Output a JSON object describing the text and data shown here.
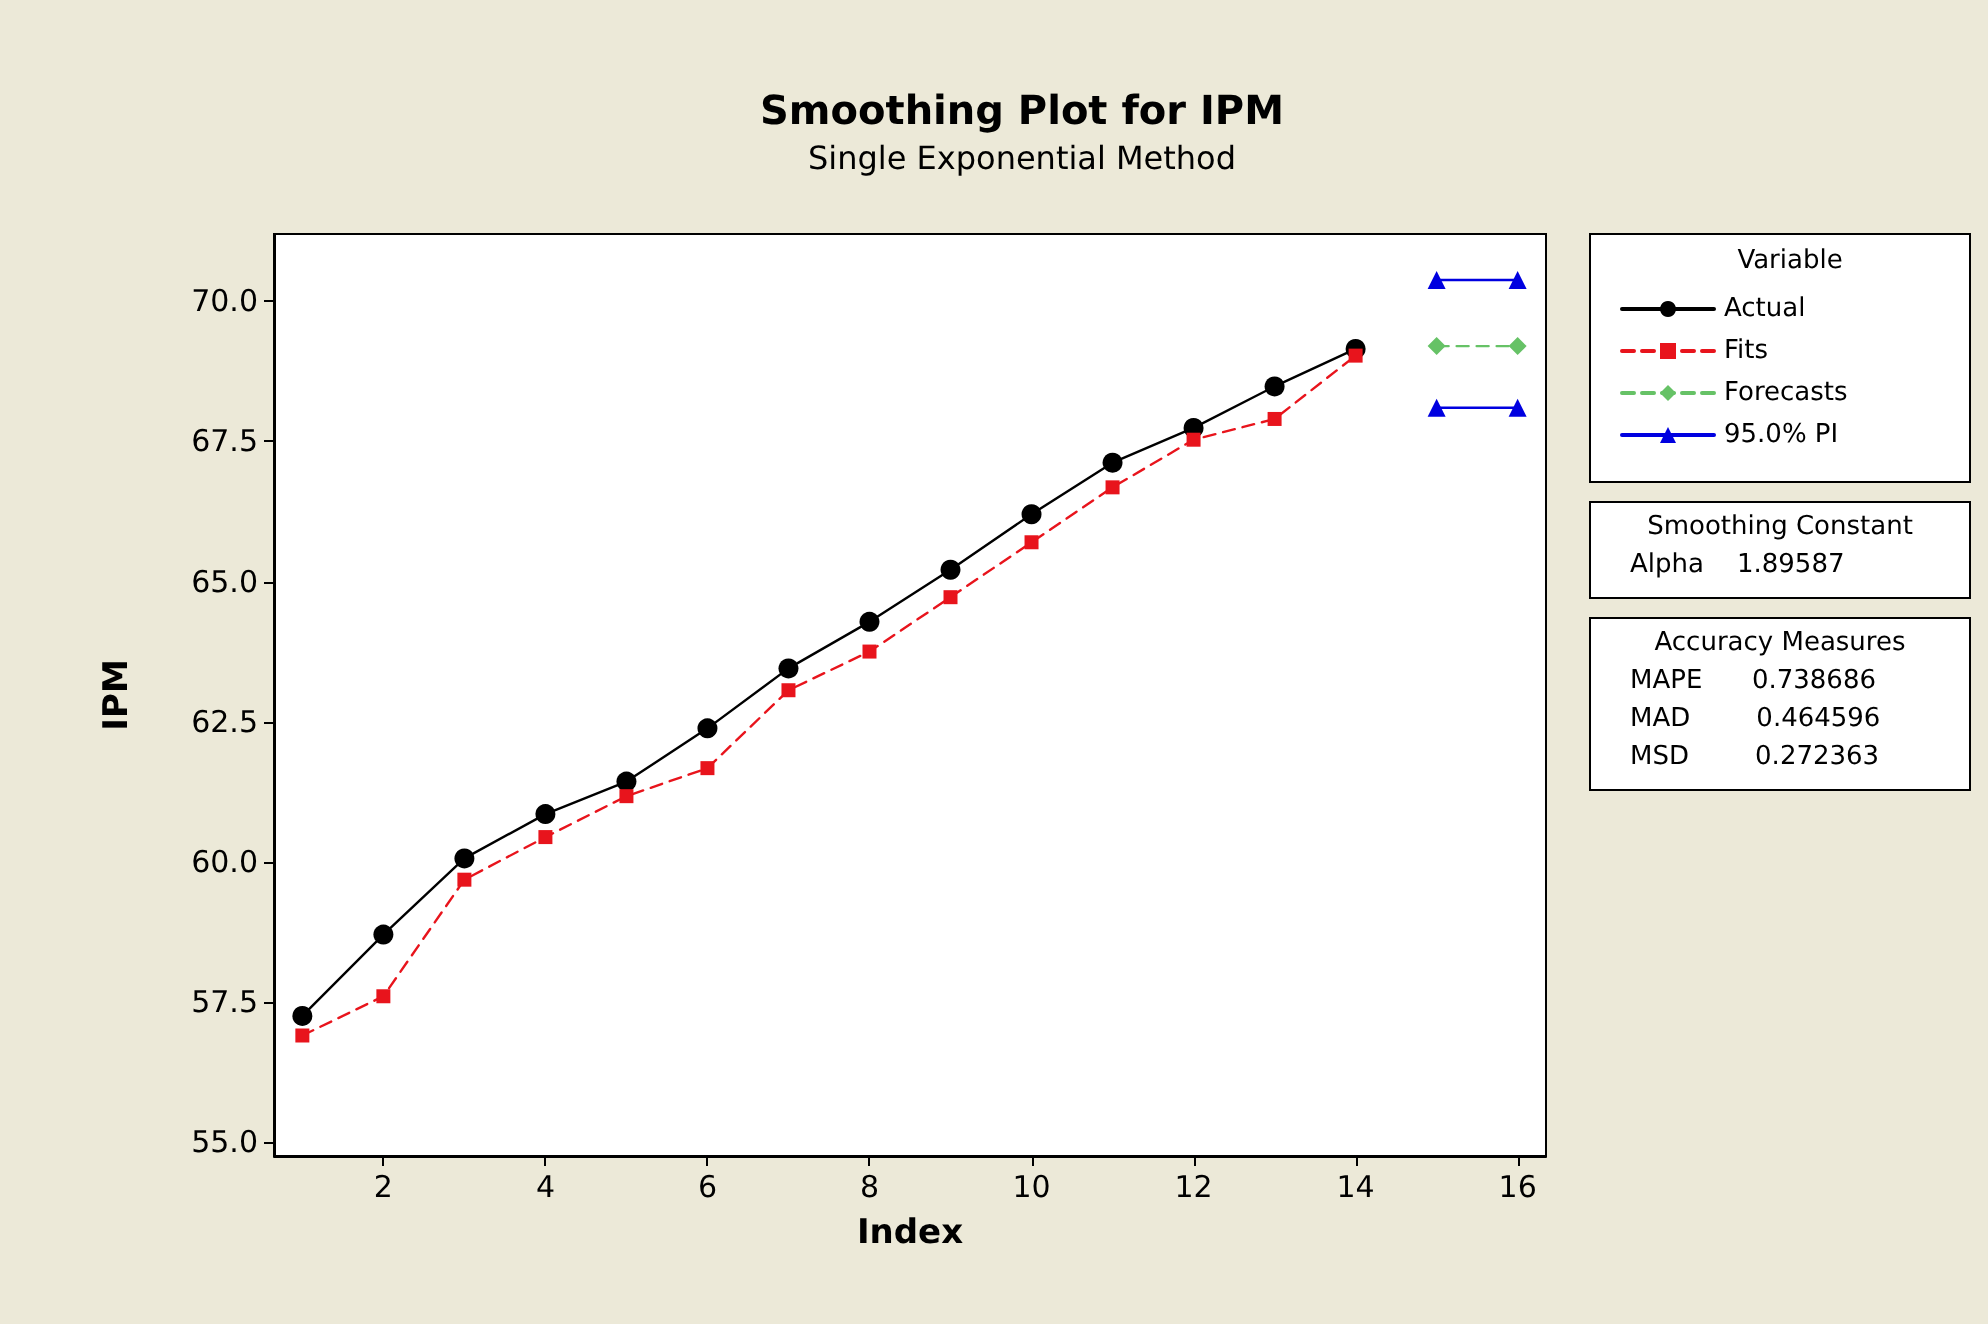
{
  "chart_data": {
    "type": "line",
    "title": "Smoothing Plot for IPM",
    "subtitle": "Single Exponential Method",
    "xlabel": "Index",
    "ylabel": "IPM",
    "legend_title": "Variable",
    "legend": "right",
    "xlim": [
      0.65,
      16.35
    ],
    "xticks": [
      2,
      4,
      6,
      8,
      10,
      12,
      14,
      16
    ],
    "ylim": [
      54.75,
      71.2
    ],
    "yticks": [
      {
        "value": 55,
        "label": "55.0"
      },
      57.5,
      {
        "value": 60,
        "label": "60.0"
      },
      62.5,
      {
        "value": 65,
        "label": "65.0"
      },
      67.5,
      {
        "value": 70,
        "label": "70.0"
      }
    ],
    "series": [
      {
        "name": "Actual",
        "color": "#000000",
        "marker": "circle",
        "line_style": "solid",
        "x": [
          1,
          2,
          3,
          4,
          5,
          6,
          7,
          8,
          9,
          10,
          11,
          12,
          13,
          14
        ],
        "values": [
          57.25,
          58.7,
          60.06,
          60.85,
          61.43,
          62.38,
          63.45,
          64.28,
          65.21,
          66.2,
          67.12,
          67.74,
          68.48,
          69.15
        ]
      },
      {
        "name": "Fits",
        "color": "#e8141c",
        "marker": "square",
        "line_style": "dashed",
        "x": [
          1,
          2,
          3,
          4,
          5,
          6,
          7,
          8,
          9,
          10,
          11,
          12,
          13,
          14
        ],
        "values": [
          56.9,
          57.6,
          59.68,
          60.44,
          61.17,
          61.67,
          63.06,
          63.75,
          64.72,
          65.7,
          66.68,
          67.53,
          67.9,
          69.03
        ]
      },
      {
        "name": "Forecasts",
        "color": "#66c266",
        "marker": "diamond",
        "line_style": "dashed",
        "x": [
          15,
          16
        ],
        "values": [
          69.2,
          69.2
        ]
      },
      {
        "name": "95.0% PI",
        "color": "#0000e0",
        "marker": "triangle",
        "line_style": "solid",
        "x": [
          15,
          16
        ],
        "values": [
          70.38,
          70.38
        ]
      },
      {
        "color": "#0000e0",
        "marker": "triangle",
        "line_style": "solid",
        "x": [
          15,
          16
        ],
        "values": [
          68.1,
          68.1
        ]
      }
    ],
    "annotations": [
      "Smoothing Constant",
      "Alpha    1.89587",
      "Accuracy Measures",
      "MAPE      0.738686",
      "MAD        0.464596",
      "MSD        0.272363"
    ]
  }
}
